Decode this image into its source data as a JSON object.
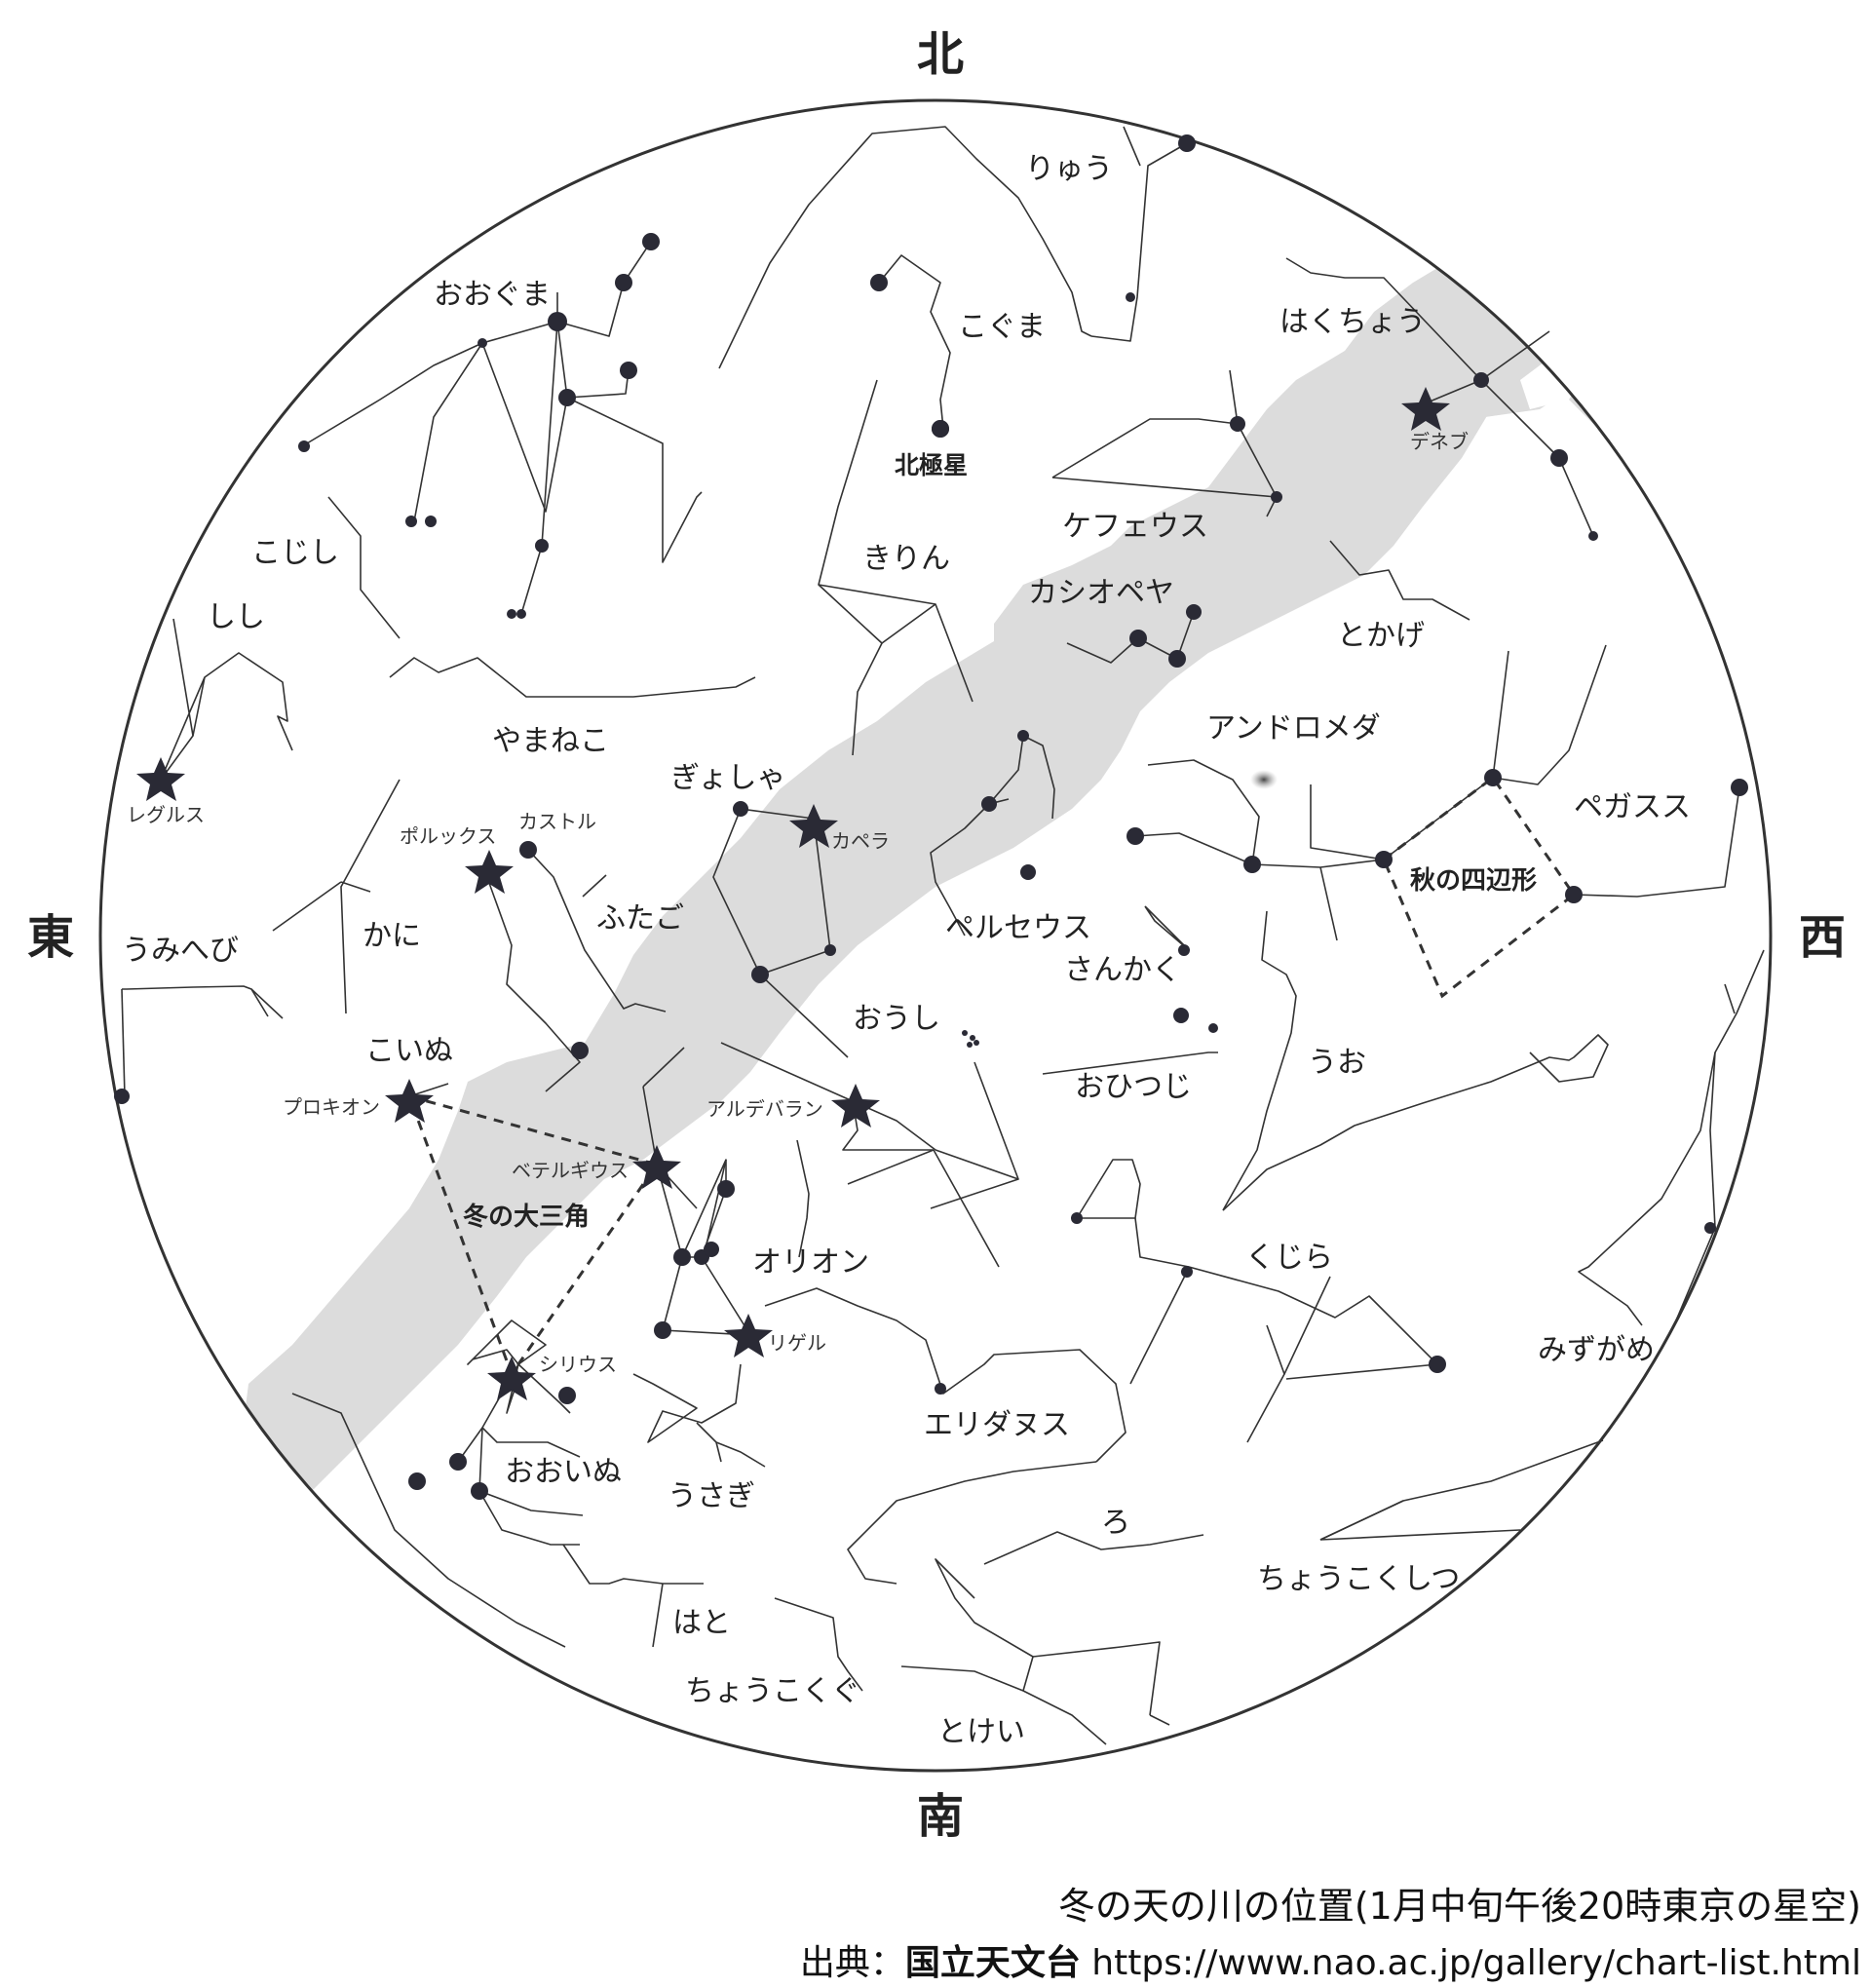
{
  "directions": {
    "north": "北",
    "south": "南",
    "east": "東",
    "west": "西"
  },
  "constellations": [
    "りゅう",
    "おおぐま",
    "こぐま",
    "はくちょう",
    "ケフェウス",
    "こじし",
    "きりん",
    "カシオペヤ",
    "とかげ",
    "しし",
    "やまねこ",
    "アンドロメダ",
    "ぎょしゃ",
    "ペガスス",
    "うみへび",
    "かに",
    "ふたご",
    "ペルセウス",
    "さんかく",
    "おうし",
    "こいぬ",
    "うお",
    "おひつじ",
    "オリオン",
    "くじら",
    "みずがめ",
    "エリダヌス",
    "おおいぬ",
    "うさぎ",
    "ろ",
    "ちょうこくしつ",
    "はと",
    "ちょうこくぐ",
    "とけい"
  ],
  "stars": [
    "北極星",
    "デネブ",
    "レグルス",
    "ポルックス",
    "カストル",
    "カペラ",
    "アルデバラン",
    "プロキオン",
    "ベテルギウス",
    "リゲル",
    "シリウス"
  ],
  "asterisms": {
    "autumn_square": "秋の四辺形",
    "winter_triangle": "冬の大三角"
  },
  "caption": "冬の天の川の位置(1月中旬午後20時東京の星空)",
  "source": {
    "prefix": "出典：",
    "org": "国立天文台",
    "url": "https://www.nao.ac.jp/gallery/chart-list.html"
  },
  "colors": {
    "milky_way": "#dcdcdc",
    "lines": "#333333",
    "stars": "#2a2a35",
    "circle": "#333333"
  }
}
